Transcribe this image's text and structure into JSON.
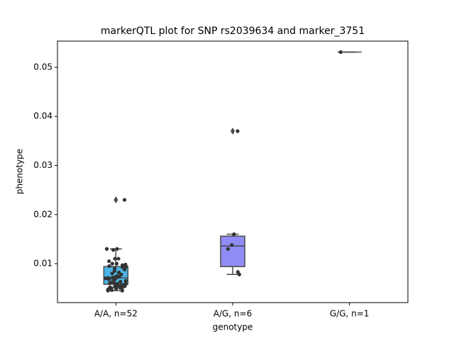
{
  "chart_data": {
    "type": "box",
    "title": "markerQTL plot for SNP rs2039634 and marker_3751",
    "xlabel": "genotype",
    "ylabel": "phenotype",
    "categories": [
      "A/A, n=52",
      "A/G, n=6",
      "G/G, n=1"
    ],
    "colors": [
      "#4cb4e6",
      "#8f8cf5",
      "#c77ae8"
    ],
    "boxes": [
      {
        "whislo": 0.0045,
        "q1": 0.0058,
        "med": 0.0071,
        "q3": 0.0094,
        "whishi": 0.013,
        "fliers": [
          0.023
        ]
      },
      {
        "whislo": 0.0078,
        "q1": 0.0094,
        "med": 0.0136,
        "q3": 0.0156,
        "whishi": 0.016,
        "fliers": [
          0.037
        ]
      },
      {
        "whislo": 0.0531,
        "q1": 0.0531,
        "med": 0.0531,
        "q3": 0.0531,
        "whishi": 0.0531,
        "fliers": []
      }
    ],
    "points": [
      [
        0.023,
        0.013,
        0.013,
        0.0128,
        0.011,
        0.011,
        0.0105,
        0.01,
        0.01,
        0.0098,
        0.0097,
        0.0095,
        0.0094,
        0.0093,
        0.009,
        0.0088,
        0.0085,
        0.0082,
        0.008,
        0.0078,
        0.0075,
        0.0073,
        0.0072,
        0.0071,
        0.0071,
        0.007,
        0.007,
        0.0068,
        0.0066,
        0.0065,
        0.0063,
        0.0062,
        0.006,
        0.006,
        0.0059,
        0.0058,
        0.0058,
        0.0057,
        0.0056,
        0.0055,
        0.0054,
        0.0053,
        0.0052,
        0.0051,
        0.005,
        0.005,
        0.0049,
        0.0048,
        0.0047,
        0.0046,
        0.0045,
        0.0045
      ],
      [
        0.037,
        0.016,
        0.0138,
        0.013,
        0.0078,
        0.0083
      ],
      [
        0.0531
      ]
    ],
    "ylim": [
      0.00206,
      0.05534
    ],
    "yticks": [
      0.01,
      0.02,
      0.03,
      0.04,
      0.05
    ]
  }
}
